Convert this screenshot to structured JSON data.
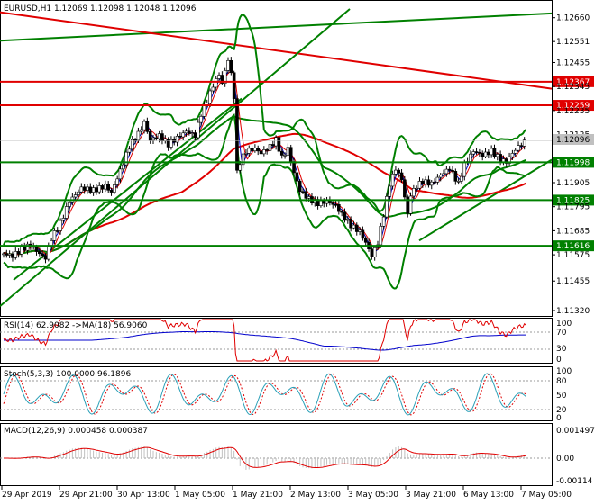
{
  "chart_data": {
    "type": "candlestick",
    "header": "EURUSD,H1  1.12069 1.12098 1.12048 1.12096",
    "price_axis": {
      "ticks": [
        "1.12660",
        "1.12551",
        "1.12455",
        "1.12345",
        "1.12235",
        "1.12125",
        "1.11905",
        "1.11795",
        "1.11685",
        "1.11575",
        "1.11455",
        "1.11320"
      ],
      "range": [
        1.1132,
        1.127
      ],
      "current": "1.12096"
    },
    "levels": [
      {
        "label": "1.12367",
        "value": 1.12367,
        "color": "#e00000"
      },
      {
        "label": "1.12259",
        "value": 1.12259,
        "color": "#e00000"
      },
      {
        "label": "1.11998",
        "value": 1.11998,
        "color": "#008000"
      },
      {
        "label": "1.11825",
        "value": 1.11825,
        "color": "#008000"
      },
      {
        "label": "1.11616",
        "value": 1.11616,
        "color": "#008000"
      }
    ],
    "time_axis": [
      "29 Apr 2019",
      "29 Apr 21:00",
      "30 Apr 13:00",
      "1 May 05:00",
      "1 May 21:00",
      "2 May 13:00",
      "3 May 05:00",
      "3 May 21:00",
      "6 May 13:00",
      "7 May 05:00"
    ],
    "close_path": [
      [
        0,
        1.1158
      ],
      [
        6,
        1.1157
      ],
      [
        12,
        1.116
      ],
      [
        18,
        1.1162
      ],
      [
        24,
        1.1158
      ],
      [
        28,
        1.1156
      ],
      [
        32,
        1.1165
      ],
      [
        38,
        1.1172
      ],
      [
        44,
        1.1182
      ],
      [
        52,
        1.1188
      ],
      [
        60,
        1.1187
      ],
      [
        68,
        1.1189
      ],
      [
        72,
        1.1186
      ],
      [
        78,
        1.1196
      ],
      [
        84,
        1.1207
      ],
      [
        90,
        1.1213
      ],
      [
        94,
        1.1218
      ],
      [
        98,
        1.121
      ],
      [
        104,
        1.1212
      ],
      [
        110,
        1.1208
      ],
      [
        116,
        1.1211
      ],
      [
        122,
        1.1214
      ],
      [
        128,
        1.1212
      ],
      [
        132,
        1.1222
      ],
      [
        136,
        1.1228
      ],
      [
        140,
        1.1235
      ],
      [
        144,
        1.124
      ],
      [
        146,
        1.1236
      ],
      [
        150,
        1.1247
      ],
      [
        152,
        1.124
      ],
      [
        154,
        1.123
      ],
      [
        156,
        1.1195
      ],
      [
        158,
        1.12
      ],
      [
        162,
        1.1205
      ],
      [
        168,
        1.1206
      ],
      [
        172,
        1.1204
      ],
      [
        178,
        1.1207
      ],
      [
        182,
        1.121
      ],
      [
        186,
        1.1202
      ],
      [
        190,
        1.1206
      ],
      [
        194,
        1.1195
      ],
      [
        198,
        1.1187
      ],
      [
        204,
        1.1183
      ],
      [
        210,
        1.1181
      ],
      [
        216,
        1.1182
      ],
      [
        222,
        1.118
      ],
      [
        226,
        1.1176
      ],
      [
        232,
        1.1171
      ],
      [
        238,
        1.1168
      ],
      [
        242,
        1.1163
      ],
      [
        246,
        1.1157
      ],
      [
        250,
        1.1163
      ],
      [
        254,
        1.1176
      ],
      [
        258,
        1.119
      ],
      [
        262,
        1.1197
      ],
      [
        266,
        1.1192
      ],
      [
        270,
        1.1176
      ],
      [
        272,
        1.1185
      ],
      [
        276,
        1.1189
      ],
      [
        280,
        1.1191
      ],
      [
        286,
        1.119
      ],
      [
        292,
        1.1194
      ],
      [
        298,
        1.1197
      ],
      [
        304,
        1.119
      ],
      [
        308,
        1.1199
      ],
      [
        314,
        1.1205
      ],
      [
        320,
        1.1203
      ],
      [
        326,
        1.1205
      ],
      [
        332,
        1.1201
      ],
      [
        336,
        1.12
      ],
      [
        340,
        1.1204
      ],
      [
        344,
        1.1207
      ],
      [
        348,
        1.1209
      ]
    ],
    "indicators": {
      "rsi": {
        "title": "RSI(14) 62.9082 ->MA(18) 56.9060",
        "ticks": [
          "100",
          "70",
          "30",
          "0"
        ]
      },
      "stoch": {
        "title": "Stoch(5,3,3) 100.0000 96.1896",
        "ticks": [
          "100",
          "80",
          "50",
          "20",
          "0"
        ]
      },
      "macd": {
        "title": "MACD(12,26,9) 0.000458 0.000387",
        "ticks": [
          "0.001497",
          "0.00",
          "-0.00114"
        ]
      }
    }
  }
}
